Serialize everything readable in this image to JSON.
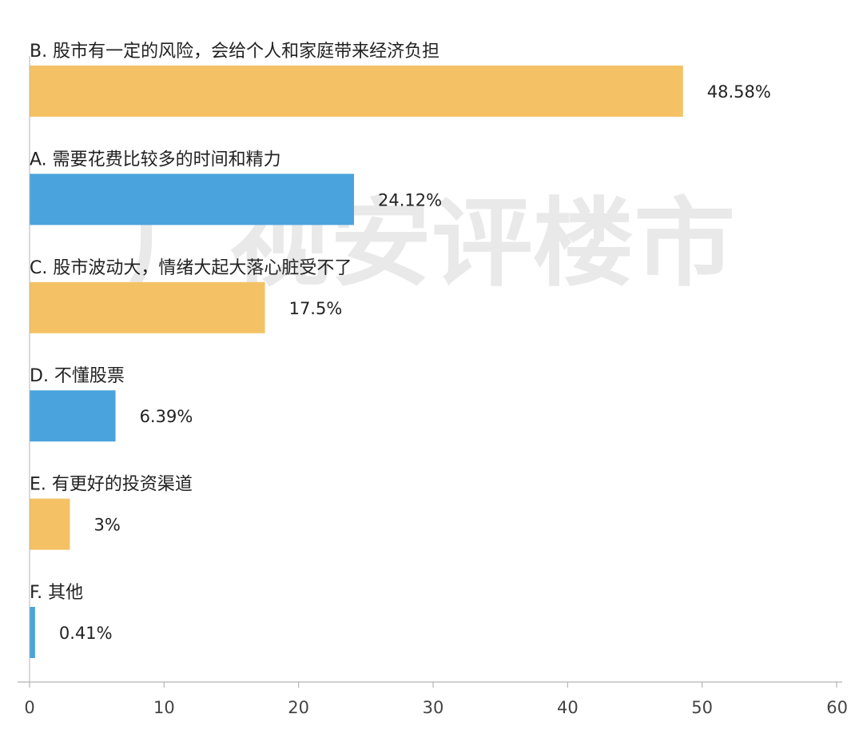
{
  "chart_data": {
    "type": "bar",
    "orientation": "horizontal",
    "categories": [
      "B. 股市有一定的风险，会给个人和家庭带来经济负担",
      "A. 需要花费比较多的时间和精力",
      "C. 股市波动大，情绪大起大落心脏受不了",
      "D. 不懂股票",
      "E. 有更好的投资渠道",
      "F. 其他"
    ],
    "values": [
      48.58,
      24.12,
      17.5,
      6.39,
      3,
      0.41
    ],
    "value_labels": [
      "48.58%",
      "24.12%",
      "17.5%",
      "6.39%",
      "3%",
      "0.41%"
    ],
    "bar_colors": [
      "#F4C265",
      "#4BA3DD",
      "#F4C265",
      "#4BA3DD",
      "#F4C265",
      "#4BA3DD"
    ],
    "xlim": [
      0,
      60
    ],
    "x_ticks": [
      0,
      10,
      20,
      30,
      40,
      50,
      60
    ],
    "x_tick_labels": [
      "0",
      "10",
      "20",
      "30",
      "40",
      "50",
      "60"
    ],
    "grid": false,
    "legend": "none",
    "title": "",
    "xlabel": "",
    "ylabel": "",
    "watermark": "广视安评楼市"
  },
  "colors": {
    "label_text": "#222222",
    "tick_text": "#444444",
    "axis_line": "#b5b5b5",
    "watermark": "#e9e9e9"
  }
}
